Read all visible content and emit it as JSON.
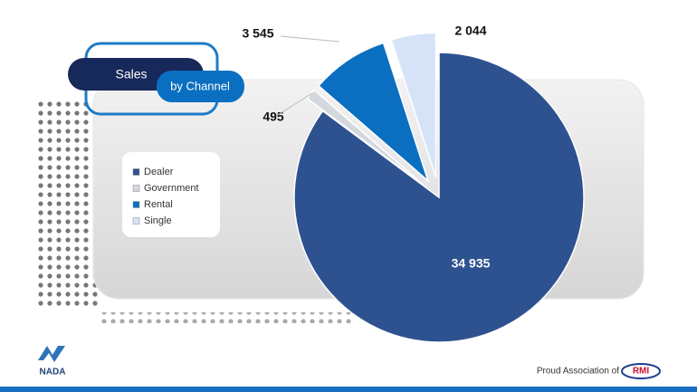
{
  "chart_data": {
    "type": "pie",
    "title": "Sales",
    "subtitle": "by Channel",
    "categories": [
      "Dealer",
      "Government",
      "Rental",
      "Single"
    ],
    "values": [
      34935,
      495,
      3545,
      2044
    ],
    "value_labels": [
      "34 935",
      "495",
      "3 545",
      "2 044"
    ],
    "colors": [
      "#2e5190",
      "#d4d8de",
      "#0b6fc1",
      "#d6e3f7"
    ],
    "legend": "left"
  },
  "branding": {
    "logo": "NADA",
    "tagline": "Proud Association of",
    "partner": "RMI"
  }
}
